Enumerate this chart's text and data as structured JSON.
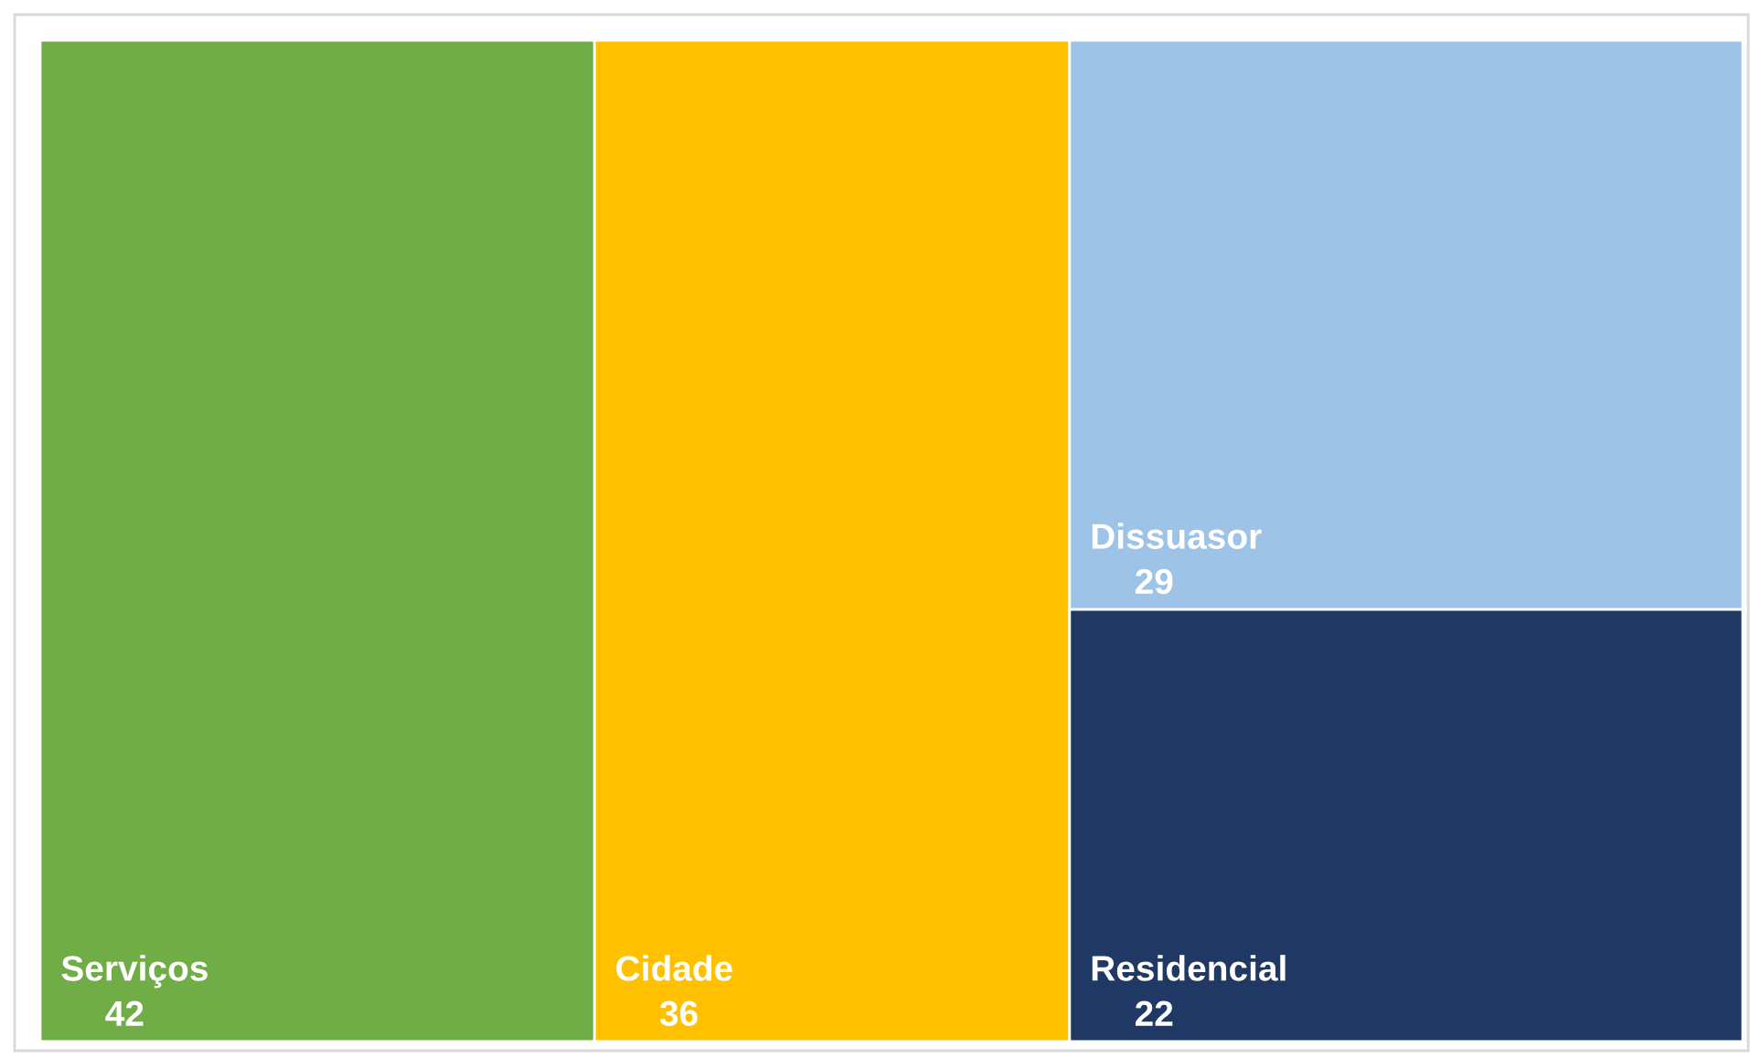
{
  "chart_data": {
    "type": "other",
    "categories": [
      "Serviços",
      "Cidade",
      "Dissuasor",
      "Residencial"
    ],
    "values": [
      42,
      36,
      29,
      22
    ],
    "colors": [
      "#70ad47",
      "#ffc000",
      "#9dc3e6",
      "#203864"
    ],
    "data_labels": true
  }
}
